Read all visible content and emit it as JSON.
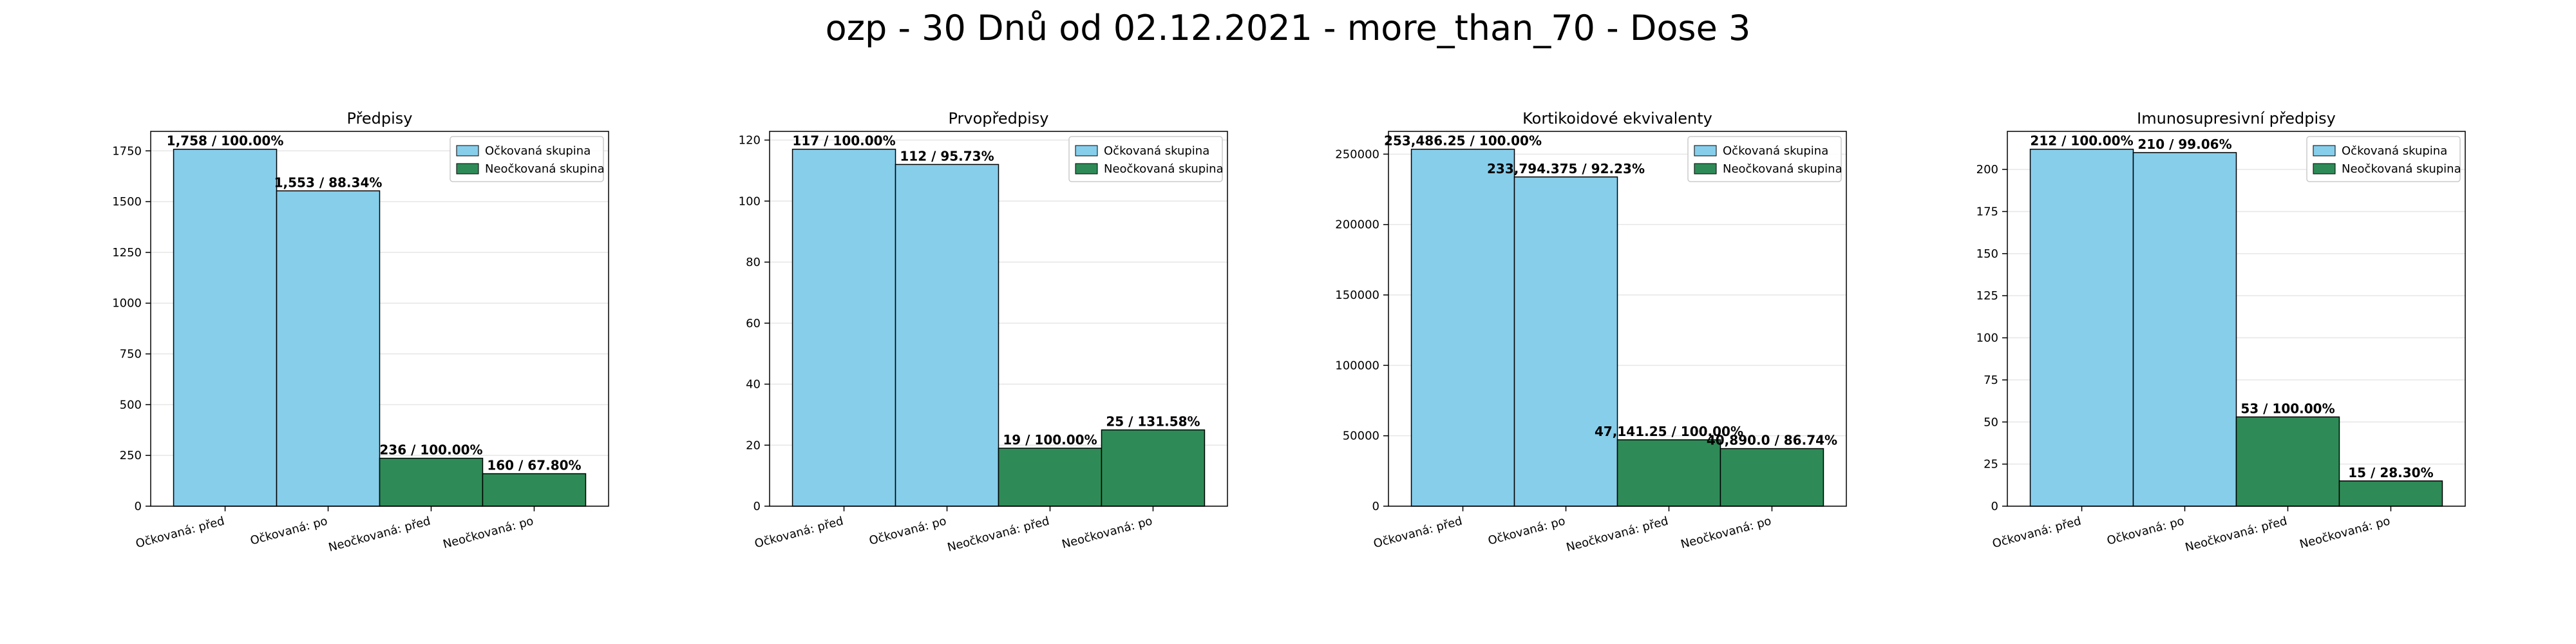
{
  "figure": {
    "title": "ozp - 30 Dnů od 02.12.2021 - more_than_70 - Dose 3"
  },
  "colors": {
    "vaccinated": "#87ceeb",
    "unvaccinated": "#2e8b57",
    "edge": "#000000",
    "grid": "#e6e6e6"
  },
  "legend": {
    "vaccinated": "Očkovaná skupina",
    "unvaccinated": "Neočkovaná skupina",
    "position": "top-right"
  },
  "chart_data": [
    {
      "type": "bar",
      "title": "Předpisy",
      "categories": [
        "Očkovaná: před",
        "Očkovaná: po",
        "Neočkovaná: před",
        "Neočkovaná: po"
      ],
      "values": [
        1758,
        1553,
        236,
        160
      ],
      "groups": [
        "vaccinated",
        "vaccinated",
        "unvaccinated",
        "unvaccinated"
      ],
      "labels": [
        "1,758 / 100.00%",
        "1,553 / 88.34%",
        "236 / 100.00%",
        "160 / 67.80%"
      ],
      "ylim": [
        0,
        1846
      ],
      "yticks": [
        0,
        250,
        500,
        750,
        1000,
        1250,
        1500,
        1750
      ],
      "ytick_labels": [
        "0",
        "250",
        "500",
        "750",
        "1000",
        "1250",
        "1500",
        "1750"
      ],
      "grid": true,
      "legend": "top-right"
    },
    {
      "type": "bar",
      "title": "Prvopředpisy",
      "categories": [
        "Očkovaná: před",
        "Očkovaná: po",
        "Neočkovaná: před",
        "Neočkovaná: po"
      ],
      "values": [
        117,
        112,
        19,
        25
      ],
      "groups": [
        "vaccinated",
        "vaccinated",
        "unvaccinated",
        "unvaccinated"
      ],
      "labels": [
        "117 / 100.00%",
        "112 / 95.73%",
        "19 / 100.00%",
        "25 / 131.58%"
      ],
      "ylim": [
        0,
        122.85
      ],
      "yticks": [
        0,
        20,
        40,
        60,
        80,
        100,
        120
      ],
      "ytick_labels": [
        "0",
        "20",
        "40",
        "60",
        "80",
        "100",
        "120"
      ],
      "grid": true,
      "legend": "top-right"
    },
    {
      "type": "bar",
      "title": "Kortikoidové ekvivalenty",
      "categories": [
        "Očkovaná: před",
        "Očkovaná: po",
        "Neočkovaná: před",
        "Neočkovaná: po"
      ],
      "values": [
        253486.25,
        233794.375,
        47141.25,
        40890.0
      ],
      "groups": [
        "vaccinated",
        "vaccinated",
        "unvaccinated",
        "unvaccinated"
      ],
      "labels": [
        "253,486.25 / 100.00%",
        "233,794.375 / 92.23%",
        "47,141.25 / 100.00%",
        "40,890.0 / 86.74%"
      ],
      "ylim": [
        0,
        266160.56
      ],
      "yticks": [
        0,
        50000,
        100000,
        150000,
        200000,
        250000
      ],
      "ytick_labels": [
        "0",
        "50000",
        "100000",
        "150000",
        "200000",
        "250000"
      ],
      "grid": true,
      "legend": "top-right"
    },
    {
      "type": "bar",
      "title": "Imunosupresivní předpisy",
      "categories": [
        "Očkovaná: před",
        "Očkovaná: po",
        "Neočkovaná: před",
        "Neočkovaná: po"
      ],
      "values": [
        212,
        210,
        53,
        15
      ],
      "groups": [
        "vaccinated",
        "vaccinated",
        "unvaccinated",
        "unvaccinated"
      ],
      "labels": [
        "212 / 100.00%",
        "210 / 99.06%",
        "53 / 100.00%",
        "15 / 28.30%"
      ],
      "ylim": [
        0,
        222.6
      ],
      "yticks": [
        0,
        25,
        50,
        75,
        100,
        125,
        150,
        175,
        200
      ],
      "ytick_labels": [
        "0",
        "25",
        "50",
        "75",
        "100",
        "125",
        "150",
        "175",
        "200"
      ],
      "grid": true,
      "legend": "top-right"
    }
  ]
}
